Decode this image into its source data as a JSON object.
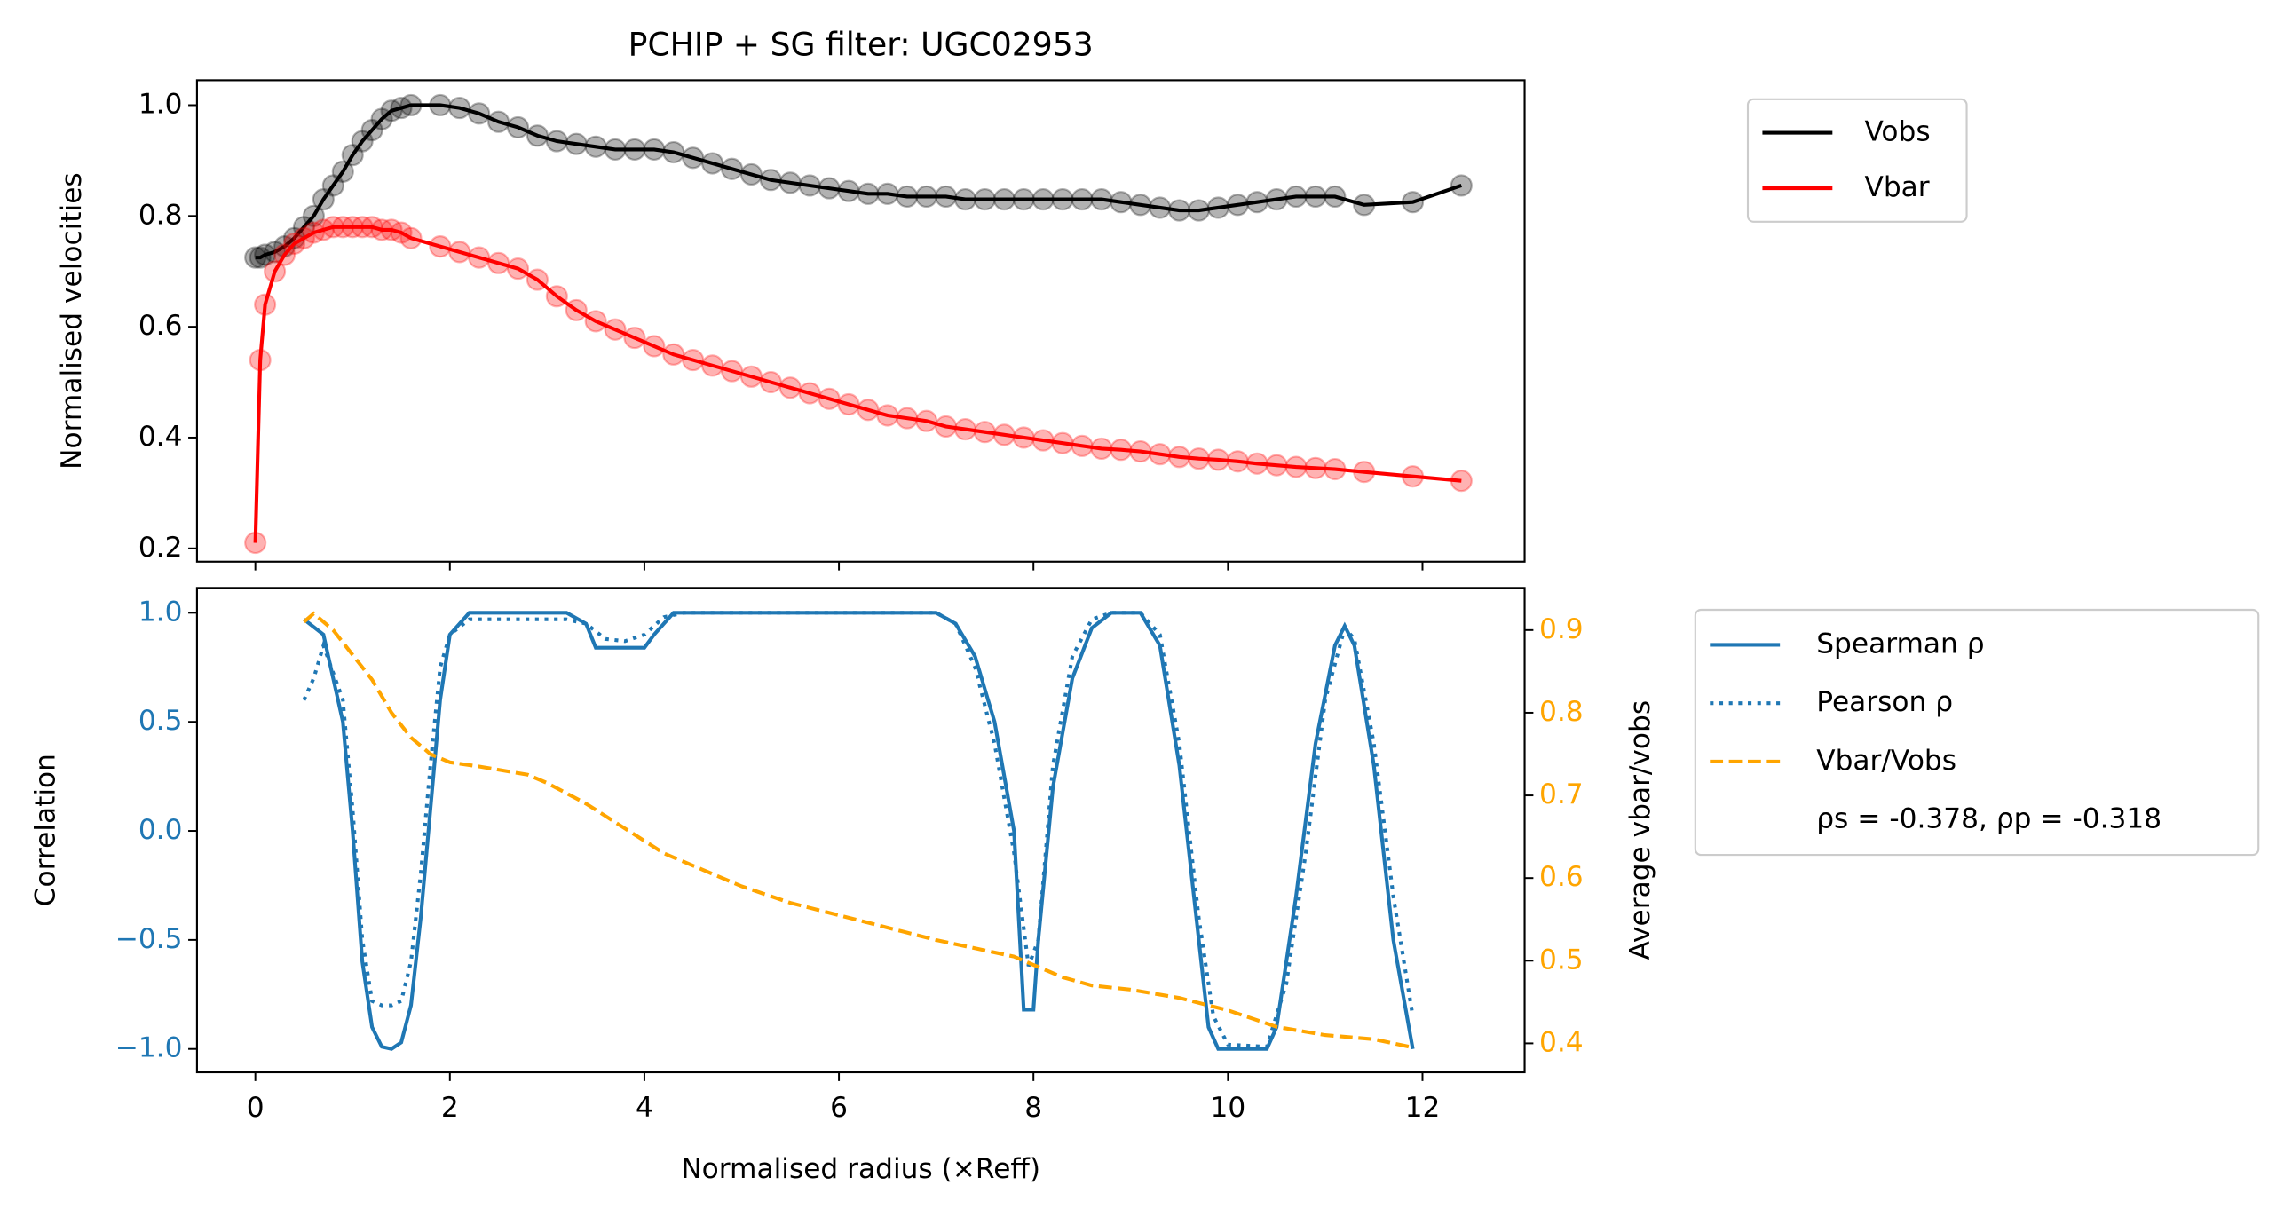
{
  "chart_data": [
    {
      "type": "line",
      "title": "PCHIP + SG filter: UGC02953",
      "ylabel": "Normalised velocities",
      "markers": true,
      "legend": "outside right",
      "xlim": [
        -0.6,
        13.05
      ],
      "xticks": [
        0,
        2,
        4,
        6,
        8,
        10,
        12
      ],
      "ylim": [
        0.176,
        1.045
      ],
      "yticks": [
        0.2,
        0.4,
        0.6,
        0.8,
        {
          "value": 1,
          "label": "1.0"
        }
      ],
      "x": [
        0,
        0.05,
        0.1,
        0.2,
        0.3,
        0.4,
        0.5,
        0.6,
        0.7,
        0.8,
        0.9,
        1.0,
        1.1,
        1.2,
        1.3,
        1.4,
        1.5,
        1.6,
        1.9,
        2.1,
        2.3,
        2.5,
        2.7,
        2.9,
        3.1,
        3.3,
        3.5,
        3.7,
        3.9,
        4.1,
        4.3,
        4.5,
        4.7,
        4.9,
        5.1,
        5.3,
        5.5,
        5.7,
        5.9,
        6.1,
        6.3,
        6.5,
        6.7,
        6.9,
        7.1,
        7.3,
        7.5,
        7.7,
        7.9,
        8.1,
        8.3,
        8.5,
        8.7,
        8.9,
        9.1,
        9.3,
        9.5,
        9.7,
        9.9,
        10.1,
        10.3,
        10.5,
        10.7,
        10.9,
        11.1,
        11.4,
        11.9,
        12.4
      ],
      "series": [
        {
          "name": "Vobs",
          "color": "#000000",
          "values": [
            0.725,
            0.725,
            0.73,
            0.735,
            0.745,
            0.76,
            0.78,
            0.8,
            0.83,
            0.855,
            0.88,
            0.91,
            0.935,
            0.955,
            0.975,
            0.99,
            0.995,
            1.0,
            1.0,
            0.995,
            0.985,
            0.97,
            0.96,
            0.945,
            0.935,
            0.93,
            0.925,
            0.92,
            0.92,
            0.92,
            0.915,
            0.905,
            0.895,
            0.885,
            0.875,
            0.865,
            0.86,
            0.855,
            0.85,
            0.845,
            0.84,
            0.84,
            0.835,
            0.835,
            0.835,
            0.83,
            0.83,
            0.83,
            0.83,
            0.83,
            0.83,
            0.83,
            0.83,
            0.825,
            0.82,
            0.815,
            0.81,
            0.81,
            0.815,
            0.82,
            0.825,
            0.83,
            0.835,
            0.835,
            0.835,
            0.82,
            0.825,
            0.855
          ]
        },
        {
          "name": "Vbar",
          "color": "#ff0000",
          "values": [
            0.21,
            0.54,
            0.64,
            0.7,
            0.73,
            0.75,
            0.76,
            0.77,
            0.775,
            0.78,
            0.78,
            0.78,
            0.78,
            0.78,
            0.775,
            0.775,
            0.77,
            0.76,
            0.745,
            0.735,
            0.725,
            0.715,
            0.705,
            0.685,
            0.655,
            0.63,
            0.61,
            0.595,
            0.58,
            0.565,
            0.55,
            0.54,
            0.53,
            0.52,
            0.51,
            0.5,
            0.49,
            0.48,
            0.47,
            0.46,
            0.45,
            0.44,
            0.435,
            0.43,
            0.42,
            0.415,
            0.41,
            0.405,
            0.4,
            0.395,
            0.39,
            0.385,
            0.38,
            0.378,
            0.375,
            0.37,
            0.365,
            0.362,
            0.36,
            0.357,
            0.353,
            0.35,
            0.347,
            0.345,
            0.343,
            0.338,
            0.33,
            0.322
          ]
        }
      ]
    },
    {
      "type": "line",
      "xlabel": "Normalised radius (×Reff)",
      "ylabel": "Correlation",
      "y2label": "Average vbar/vobs",
      "legend": "outside right",
      "annotation": "ρs = -0.378, ρp = -0.318",
      "ytick_color": "#1f77b4",
      "y2tick_color": "#ffa500",
      "xlim": [
        -0.6,
        13.05
      ],
      "xticks": [
        0,
        2,
        4,
        6,
        8,
        10,
        12
      ],
      "ylim": [
        -1.107,
        1.114
      ],
      "yticks": [
        {
          "value": -1,
          "label": "−1.0"
        },
        {
          "value": -0.5,
          "label": "−0.5"
        },
        {
          "value": 0,
          "label": "0.0"
        },
        0.5,
        {
          "value": 1,
          "label": "1.0"
        }
      ],
      "y2lim": [
        0.365,
        0.951
      ],
      "y2ticks": [
        0.4,
        0.5,
        0.6,
        0.7,
        0.8,
        0.9
      ],
      "series": [
        {
          "name": "Spearman ρ",
          "color": "#1f77b4",
          "style": "solid",
          "x": [
            0.5,
            0.7,
            0.9,
            1.0,
            1.1,
            1.2,
            1.3,
            1.4,
            1.5,
            1.6,
            1.7,
            1.8,
            1.9,
            2.0,
            2.2,
            3.2,
            3.4,
            3.5,
            4.0,
            4.1,
            4.3,
            7.0,
            7.2,
            7.4,
            7.6,
            7.8,
            7.9,
            8.0,
            8.05,
            8.2,
            8.4,
            8.6,
            8.8,
            9.1,
            9.3,
            9.5,
            9.7,
            9.8,
            9.9,
            10.4,
            10.5,
            10.7,
            10.9,
            11.1,
            11.2,
            11.3,
            11.5,
            11.7,
            11.9
          ],
          "values": [
            0.97,
            0.9,
            0.5,
            0.0,
            -0.6,
            -0.9,
            -0.99,
            -1.0,
            -0.97,
            -0.8,
            -0.4,
            0.1,
            0.6,
            0.9,
            1.0,
            1.0,
            0.95,
            0.84,
            0.84,
            0.9,
            1.0,
            1.0,
            0.95,
            0.8,
            0.5,
            0.0,
            -0.82,
            -0.82,
            -0.5,
            0.2,
            0.7,
            0.93,
            1.0,
            1.0,
            0.85,
            0.3,
            -0.5,
            -0.9,
            -1.0,
            -1.0,
            -0.9,
            -0.3,
            0.4,
            0.85,
            0.94,
            0.85,
            0.3,
            -0.5,
            -1.0
          ]
        },
        {
          "name": "Pearson ρ",
          "color": "#1f77b4",
          "style": "dotted",
          "x": [
            0.5,
            0.6,
            0.7,
            0.9,
            1.0,
            1.1,
            1.2,
            1.3,
            1.4,
            1.5,
            1.6,
            1.7,
            1.8,
            1.9,
            2.0,
            2.2,
            3.2,
            3.4,
            3.6,
            3.8,
            4.0,
            4.2,
            4.4,
            7.0,
            7.2,
            7.4,
            7.6,
            7.8,
            7.95,
            8.05,
            8.2,
            8.4,
            8.6,
            8.8,
            9.1,
            9.3,
            9.5,
            9.7,
            9.85,
            10.0,
            10.4,
            10.6,
            10.8,
            11.0,
            11.2,
            11.3,
            11.5,
            11.7,
            11.9
          ],
          "values": [
            0.6,
            0.7,
            0.85,
            0.6,
            0.1,
            -0.5,
            -0.78,
            -0.8,
            -0.8,
            -0.78,
            -0.6,
            -0.2,
            0.3,
            0.75,
            0.9,
            0.97,
            0.97,
            0.95,
            0.88,
            0.87,
            0.9,
            0.98,
            1.0,
            1.0,
            0.95,
            0.75,
            0.4,
            -0.1,
            -0.62,
            -0.5,
            0.3,
            0.8,
            0.97,
            1.0,
            1.0,
            0.9,
            0.4,
            -0.4,
            -0.85,
            -0.98,
            -0.99,
            -0.7,
            -0.1,
            0.6,
            0.93,
            0.88,
            0.4,
            -0.3,
            -0.85
          ]
        },
        {
          "name": "Vbar/Vobs",
          "color": "#ffa500",
          "style": "dashed",
          "axis": "y2",
          "x": [
            0.5,
            0.6,
            0.8,
            1.0,
            1.2,
            1.4,
            1.6,
            1.8,
            2.0,
            2.3,
            2.8,
            3.0,
            3.4,
            3.8,
            4.2,
            4.6,
            5.0,
            5.5,
            6.0,
            7.0,
            7.8,
            8.0,
            8.3,
            8.6,
            9.0,
            9.5,
            10.0,
            10.5,
            11.0,
            11.5,
            11.9
          ],
          "values": [
            0.91,
            0.92,
            0.9,
            0.87,
            0.84,
            0.8,
            0.77,
            0.75,
            0.74,
            0.735,
            0.725,
            0.715,
            0.69,
            0.66,
            0.63,
            0.61,
            0.59,
            0.57,
            0.555,
            0.525,
            0.505,
            0.495,
            0.48,
            0.47,
            0.465,
            0.455,
            0.44,
            0.42,
            0.41,
            0.405,
            0.395
          ]
        }
      ]
    }
  ]
}
